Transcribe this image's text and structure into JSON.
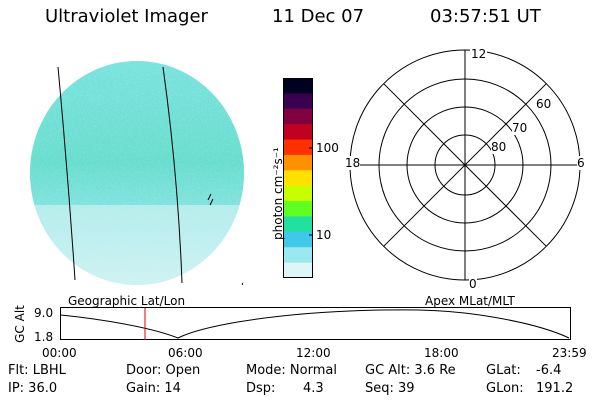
{
  "header": {
    "instrument": "Ultraviolet Imager",
    "date": "11 Dec 07",
    "time": "03:57:51 UT"
  },
  "colorbar": {
    "unit_label": "photon cm⁻²s⁻¹",
    "ticks": [
      "100",
      "10"
    ],
    "colors": [
      "#000020",
      "#3a0050",
      "#800040",
      "#c00020",
      "#ff3000",
      "#ff9000",
      "#ffe000",
      "#c8ff00",
      "#60ff20",
      "#20e0a0",
      "#40c8e8",
      "#9ae8f0",
      "#dff6f8"
    ]
  },
  "polar_grid": {
    "mlt_labels": {
      "top": "12",
      "left": "18",
      "right": "6",
      "bottom": "0"
    },
    "lat_labels": [
      "60",
      "70",
      "80"
    ]
  },
  "timeline": {
    "left_label": "Geographic Lat/Lon",
    "right_label": "Apex MLat/MLT",
    "axis_title": "GC Alt",
    "y_ticks": [
      "9.0",
      "1.8"
    ],
    "x_ticks": [
      "00:00",
      "06:00",
      "12:00",
      "18:00",
      "23:59"
    ],
    "cursor_color": "#e00000"
  },
  "status": {
    "flt": "Flt: LBHL",
    "ip": "IP: 36.0",
    "door": "Door: Open",
    "gain": "Gain: 14",
    "mode": "Mode: Normal",
    "dsp_label": "Dsp:",
    "dsp_value": "4.3",
    "gcalt": "GC Alt: 3.6 Re",
    "seq": "Seq: 39",
    "glat_label": "GLat:",
    "glat_value": "-6.4",
    "glon_label": "GLon:",
    "glon_value": "191.2"
  }
}
